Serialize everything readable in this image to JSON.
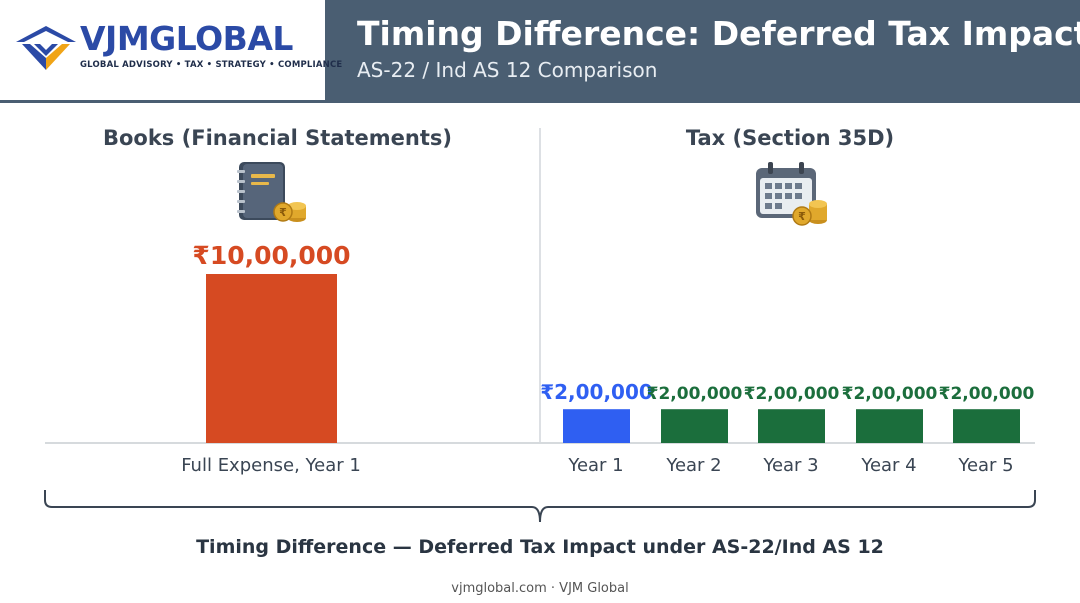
{
  "brand": {
    "name_part1": "VJM",
    "name_part2": "GLOBAL",
    "tagline": "GLOBAL ADVISORY • TAX • STRATEGY • COMPLIANCE"
  },
  "header": {
    "title": "Timing Difference: Deferred Tax Impact",
    "subtitle": "AS-22 / Ind AS 12 Comparison"
  },
  "sections": {
    "books_title": "Books (Financial Statements)",
    "tax_title": "Tax (Section 35D)",
    "books_icon": "ledger-book-with-coins-icon",
    "tax_icon": "calendar-with-coins-icon"
  },
  "colors": {
    "header_bg": "#4a5e72",
    "books_bar": "#d64a22",
    "tax_year1_bar": "#2f5ff2",
    "tax_other_bars": "#1b6e3c",
    "books_label": "#d64a22",
    "tax_year1_label": "#2f5ff2",
    "tax_other_label": "#1b6e3c"
  },
  "chart_data": {
    "type": "bar",
    "title": "Timing Difference: Deferred Tax Impact",
    "panels": [
      {
        "name": "Books (Financial Statements)",
        "categories": [
          "Full Expense, Year 1"
        ],
        "values": [
          1000000
        ],
        "value_labels": [
          "₹10,00,000"
        ]
      },
      {
        "name": "Tax (Section 35D)",
        "categories": [
          "Year 1",
          "Year 2",
          "Year 3",
          "Year 4",
          "Year 5"
        ],
        "values": [
          200000,
          200000,
          200000,
          200000,
          200000
        ],
        "value_labels": [
          "₹2,00,000",
          "₹2,00,000",
          "₹2,00,000",
          "₹2,00,000",
          "₹2,00,000"
        ]
      }
    ],
    "ylim": [
      0,
      1000000
    ],
    "grid": false,
    "annotation": "Timing Difference — Deferred Tax Impact under AS-22/Ind AS 12"
  },
  "footer": {
    "text": "vjmglobal.com · VJM Global"
  }
}
